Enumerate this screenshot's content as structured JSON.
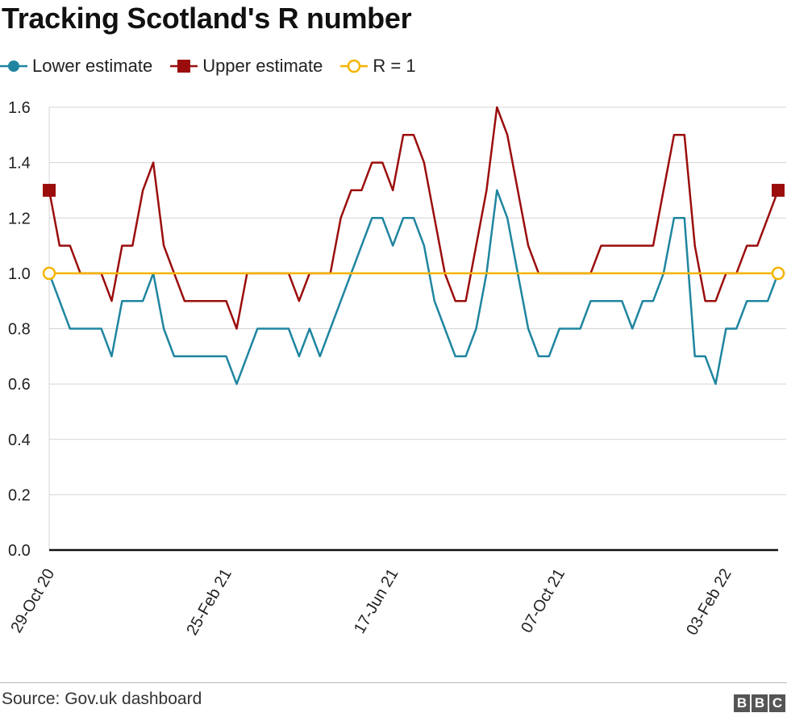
{
  "header": {
    "title": "Tracking Scotland's R number"
  },
  "legend": [
    {
      "label": "Lower estimate",
      "color": "#1f85a0",
      "marker": "circle"
    },
    {
      "label": "Upper estimate",
      "color": "#9b0d0d",
      "marker": "square"
    },
    {
      "label": "R = 1",
      "color": "#f5b400",
      "marker": "hollow-circle"
    }
  ],
  "footer": {
    "source": "Source: Gov.uk dashboard",
    "logo_letters": [
      "B",
      "B",
      "C"
    ]
  },
  "chart_data": {
    "type": "line",
    "title": "Tracking Scotland's R number",
    "xlabel": "",
    "ylabel": "",
    "ylim": [
      0,
      1.6
    ],
    "yticks": [
      "0.0",
      "0.2",
      "0.4",
      "0.6",
      "0.8",
      "1.0",
      "1.2",
      "1.4",
      "1.6"
    ],
    "ytick_values": [
      0,
      0.2,
      0.4,
      0.6,
      0.8,
      1.0,
      1.2,
      1.4,
      1.6
    ],
    "x_tick_labels": [
      {
        "label": "29-Oct 20",
        "index": 0
      },
      {
        "label": "25-Feb 21",
        "index": 17
      },
      {
        "label": "17-Jun 21",
        "index": 33
      },
      {
        "label": "07-Oct 21",
        "index": 49
      },
      {
        "label": "03-Feb 22",
        "index": 65
      }
    ],
    "grid": true,
    "series": [
      {
        "name": "Lower estimate",
        "color": "#1f85a0",
        "values": [
          1.0,
          0.9,
          0.8,
          0.8,
          0.8,
          0.8,
          0.7,
          0.9,
          0.9,
          0.9,
          1.0,
          0.8,
          0.7,
          0.7,
          0.7,
          0.7,
          0.7,
          0.7,
          0.6,
          0.7,
          0.8,
          0.8,
          0.8,
          0.8,
          0.7,
          0.8,
          0.7,
          0.8,
          0.9,
          1.0,
          1.1,
          1.2,
          1.2,
          1.1,
          1.2,
          1.2,
          1.1,
          0.9,
          0.8,
          0.7,
          0.7,
          0.8,
          1.0,
          1.3,
          1.2,
          1.0,
          0.8,
          0.7,
          0.7,
          0.8,
          0.8,
          0.8,
          0.9,
          0.9,
          0.9,
          0.9,
          0.8,
          0.9,
          0.9,
          1.0,
          1.2,
          1.2,
          0.7,
          0.7,
          0.6,
          0.8,
          0.8,
          0.9,
          0.9,
          0.9,
          1.0
        ]
      },
      {
        "name": "Upper estimate",
        "color": "#9b0d0d",
        "values": [
          1.3,
          1.1,
          1.1,
          1.0,
          1.0,
          1.0,
          0.9,
          1.1,
          1.1,
          1.3,
          1.4,
          1.1,
          1.0,
          0.9,
          0.9,
          0.9,
          0.9,
          0.9,
          0.8,
          1.0,
          1.0,
          1.0,
          1.0,
          1.0,
          0.9,
          1.0,
          1.0,
          1.0,
          1.2,
          1.3,
          1.3,
          1.4,
          1.4,
          1.3,
          1.5,
          1.5,
          1.4,
          1.2,
          1.0,
          0.9,
          0.9,
          1.1,
          1.3,
          1.6,
          1.5,
          1.3,
          1.1,
          1.0,
          1.0,
          1.0,
          1.0,
          1.0,
          1.0,
          1.1,
          1.1,
          1.1,
          1.1,
          1.1,
          1.1,
          1.3,
          1.5,
          1.5,
          1.1,
          0.9,
          0.9,
          1.0,
          1.0,
          1.1,
          1.1,
          1.2,
          1.3
        ]
      },
      {
        "name": "R = 1",
        "color": "#f5b400",
        "values": [
          1.0,
          1.0,
          1.0,
          1.0,
          1.0,
          1.0,
          1.0,
          1.0,
          1.0,
          1.0,
          1.0,
          1.0,
          1.0,
          1.0,
          1.0,
          1.0,
          1.0,
          1.0,
          1.0,
          1.0,
          1.0,
          1.0,
          1.0,
          1.0,
          1.0,
          1.0,
          1.0,
          1.0,
          1.0,
          1.0,
          1.0,
          1.0,
          1.0,
          1.0,
          1.0,
          1.0,
          1.0,
          1.0,
          1.0,
          1.0,
          1.0,
          1.0,
          1.0,
          1.0,
          1.0,
          1.0,
          1.0,
          1.0,
          1.0,
          1.0,
          1.0,
          1.0,
          1.0,
          1.0,
          1.0,
          1.0,
          1.0,
          1.0,
          1.0,
          1.0,
          1.0,
          1.0,
          1.0,
          1.0,
          1.0,
          1.0,
          1.0,
          1.0,
          1.0,
          1.0,
          1.0
        ]
      }
    ]
  }
}
